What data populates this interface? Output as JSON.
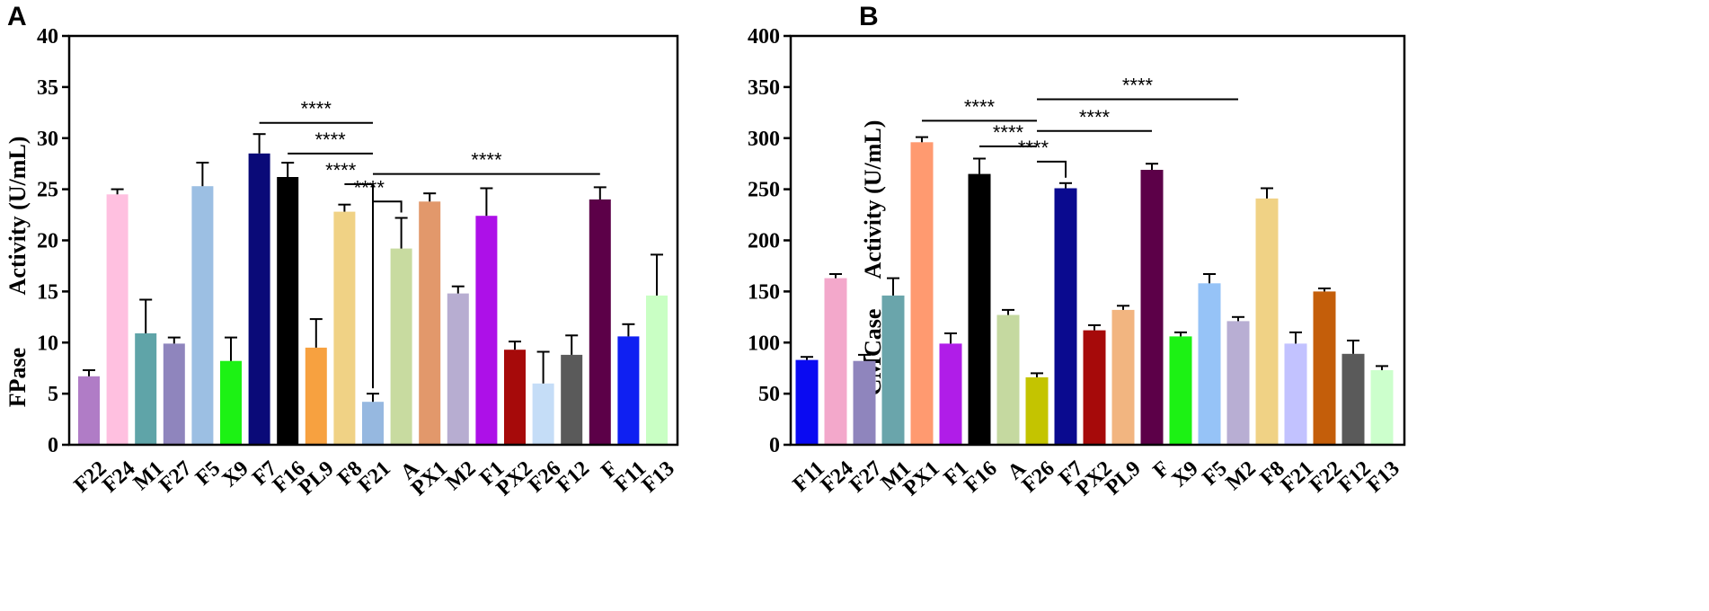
{
  "chart_data": [
    {
      "panel": "A",
      "type": "bar",
      "ylabel_part1": "FPase",
      "ylabel_part2": "Activity (U/mL)",
      "ylim": [
        0,
        40
      ],
      "yticks": [
        0,
        5,
        10,
        15,
        20,
        25,
        30,
        35,
        40
      ],
      "categories": [
        "F22",
        "F24",
        "M1",
        "F27",
        "F5",
        "X9",
        "F7",
        "F16",
        "PL9",
        "F8",
        "F21",
        "A",
        "PX1",
        "M2",
        "F1",
        "PX2",
        "F26",
        "F12",
        "F",
        "F11",
        "F13"
      ],
      "values": [
        6.7,
        24.5,
        10.9,
        9.9,
        25.3,
        8.2,
        28.5,
        26.2,
        9.5,
        22.8,
        4.2,
        19.2,
        23.8,
        14.8,
        22.4,
        9.3,
        6.0,
        8.8,
        24.0,
        10.6,
        14.6
      ],
      "errors": [
        0.6,
        0.5,
        3.3,
        0.6,
        2.3,
        2.3,
        1.9,
        1.4,
        2.8,
        0.7,
        0.8,
        3.0,
        0.8,
        0.7,
        2.7,
        0.8,
        3.1,
        1.9,
        1.2,
        1.2,
        4.0
      ],
      "colors": [
        "#b07cc6",
        "#ffc0e0",
        "#5fa4a8",
        "#8f85bd",
        "#9cbfe3",
        "#1cf214",
        "#0a0a78",
        "#000000",
        "#f7a140",
        "#f0d285",
        "#96b8e0",
        "#c8dba0",
        "#e2986b",
        "#b7add1",
        "#ad10e8",
        "#a60a0a",
        "#c5ddf7",
        "#5a5a5a",
        "#5c0048",
        "#0f20f2",
        "#c9ffc4"
      ],
      "significance": [
        {
          "from": 6,
          "to": 10,
          "level": 31.5,
          "label": "****"
        },
        {
          "from": 7,
          "to": 10,
          "level": 28.5,
          "label": "****"
        },
        {
          "from": 9,
          "to": 10,
          "level": 25.5,
          "label": "****",
          "drop": true
        },
        {
          "from": 10,
          "to": 18,
          "level": 26.5,
          "label": "****"
        },
        {
          "from": 10,
          "to": 11,
          "level": 23.8,
          "label": "****",
          "drop": true
        }
      ]
    },
    {
      "panel": "B",
      "type": "bar",
      "ylabel_part1": "CMCase",
      "ylabel_part2": "Activity (U/mL)",
      "ylim": [
        0,
        400
      ],
      "yticks": [
        0,
        50,
        100,
        150,
        200,
        250,
        300,
        350,
        400
      ],
      "categories": [
        "F11",
        "F24",
        "F27",
        "M1",
        "PX1",
        "F1",
        "F16",
        "A",
        "F26",
        "F7",
        "PX2",
        "PL9",
        "F",
        "X9",
        "F5",
        "M2",
        "F8",
        "F21",
        "F22",
        "F12",
        "F13"
      ],
      "values": [
        83,
        163,
        82,
        146,
        296,
        99,
        265,
        127,
        66,
        251,
        112,
        132,
        269,
        106,
        158,
        121,
        241,
        99,
        150,
        89,
        73
      ],
      "errors": [
        3,
        4,
        6,
        17,
        5,
        10,
        15,
        5,
        4,
        5,
        5,
        4,
        6,
        4,
        9,
        4,
        10,
        11,
        3,
        13,
        4
      ],
      "colors": [
        "#0a0af2",
        "#f3a8cb",
        "#8f85bd",
        "#6aa5ab",
        "#ff9a70",
        "#b01de8",
        "#000000",
        "#c5d9a0",
        "#c4c400",
        "#0a0a8f",
        "#a60a0a",
        "#f2b580",
        "#5c0048",
        "#1cf214",
        "#96c3f7",
        "#b8aed3",
        "#f0d285",
        "#c2c2ff",
        "#c45e0a",
        "#5a5a5a",
        "#ccffcc"
      ],
      "significance": [
        {
          "from": 4,
          "to": 8,
          "level": 317,
          "label": "****"
        },
        {
          "from": 6,
          "to": 8,
          "level": 292,
          "label": "****"
        },
        {
          "from": 8,
          "to": 15,
          "level": 338,
          "label": "****"
        },
        {
          "from": 8,
          "to": 12,
          "level": 307,
          "label": "****"
        },
        {
          "from": 8,
          "to": 9,
          "level": 277,
          "label": "****",
          "drop": true
        }
      ]
    }
  ]
}
